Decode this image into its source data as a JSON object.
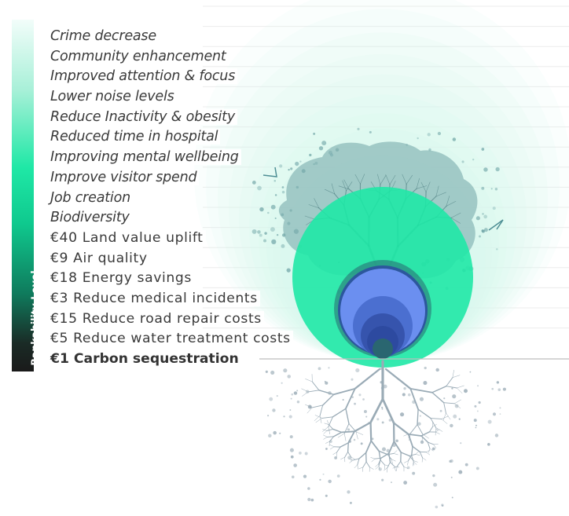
{
  "sidebar": {
    "label": "Bankability Level"
  },
  "benefits": [
    {
      "kind": "soft",
      "text": "Crime decrease"
    },
    {
      "kind": "soft",
      "text": "Community enhancement"
    },
    {
      "kind": "soft",
      "text": "Improved attention & focus"
    },
    {
      "kind": "soft",
      "text": "Lower noise levels"
    },
    {
      "kind": "soft",
      "text": "Reduce Inactivity & obesity"
    },
    {
      "kind": "soft",
      "text": "Reduced time in hospital"
    },
    {
      "kind": "soft",
      "text": "Improving mental wellbeing"
    },
    {
      "kind": "soft",
      "text": "Improve visitor spend"
    },
    {
      "kind": "soft",
      "text": "Job creation"
    },
    {
      "kind": "soft",
      "text": "Biodiversity"
    },
    {
      "kind": "money",
      "amount": "€40",
      "text": "Land value uplift"
    },
    {
      "kind": "money",
      "amount": "€9",
      "text": "Air quality"
    },
    {
      "kind": "money",
      "amount": "€18",
      "text": "Energy savings"
    },
    {
      "kind": "money",
      "amount": "€3",
      "text": "Reduce medical incidents"
    },
    {
      "kind": "money",
      "amount": "€15",
      "text": "Reduce road repair costs"
    },
    {
      "kind": "money",
      "amount": "€5",
      "text": "Reduce water treatment costs"
    },
    {
      "kind": "strong",
      "amount": "€1",
      "text": "Carbon sequestration"
    }
  ],
  "colors": {
    "pale_mint": "#d8f8ee",
    "mint_green": "#1fe8a6",
    "tree_canopy": "#6fa4a6",
    "blue": "#6b8ff0",
    "navy": "#2d4aa0",
    "dark_teal": "#2a6670",
    "root_grey": "#9aabb6",
    "text": "#3a3a3a"
  }
}
